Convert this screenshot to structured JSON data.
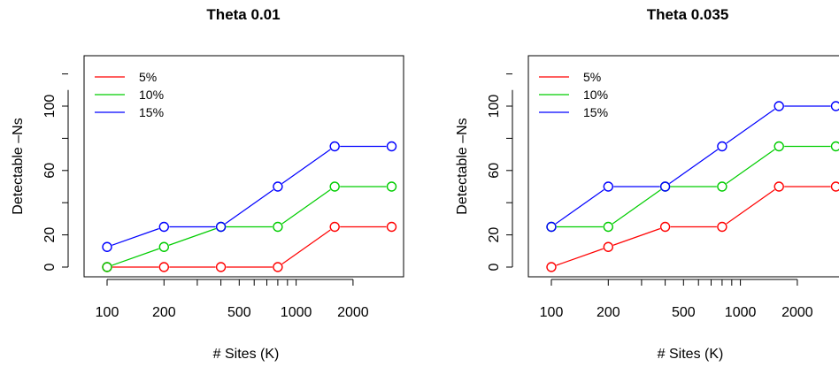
{
  "chart_data": [
    {
      "type": "line",
      "title": "Theta 0.01",
      "xlabel": "# Sites (K)",
      "ylabel": "Detectable –Ns",
      "x_scale": "log",
      "x": [
        100,
        200,
        400,
        800,
        1600,
        3200
      ],
      "xticks": [
        100,
        200,
        500,
        1000,
        2000
      ],
      "xtick_labels": [
        "100",
        "200",
        "500",
        "1000",
        "2000"
      ],
      "yticks": [
        0,
        20,
        60,
        100
      ],
      "ytick_labels": [
        "0",
        "20",
        "60",
        "100"
      ],
      "ylim": [
        -5,
        120
      ],
      "legend_position": "top-left",
      "series": [
        {
          "name": "5%",
          "color": "#ff0000",
          "values": [
            0,
            0,
            0,
            0,
            25,
            25
          ]
        },
        {
          "name": "10%",
          "color": "#00cd00",
          "values": [
            0,
            12.5,
            25,
            25,
            50,
            50
          ]
        },
        {
          "name": "15%",
          "color": "#0000ff",
          "values": [
            12.5,
            25,
            25,
            50,
            75,
            75
          ]
        }
      ]
    },
    {
      "type": "line",
      "title": "Theta 0.035",
      "xlabel": "# Sites (K)",
      "ylabel": "Detectable –Ns",
      "x_scale": "log",
      "x": [
        100,
        200,
        400,
        800,
        1600,
        3200
      ],
      "xticks": [
        100,
        200,
        500,
        1000,
        2000
      ],
      "xtick_labels": [
        "100",
        "200",
        "500",
        "1000",
        "2000"
      ],
      "yticks": [
        0,
        20,
        60,
        100
      ],
      "ytick_labels": [
        "0",
        "20",
        "60",
        "100"
      ],
      "ylim": [
        -5,
        120
      ],
      "legend_position": "top-left",
      "series": [
        {
          "name": "5%",
          "color": "#ff0000",
          "values": [
            0,
            12.5,
            25,
            25,
            50,
            50
          ]
        },
        {
          "name": "10%",
          "color": "#00cd00",
          "values": [
            25,
            25,
            50,
            50,
            75,
            75
          ]
        },
        {
          "name": "15%",
          "color": "#0000ff",
          "values": [
            25,
            50,
            50,
            75,
            100,
            100
          ]
        }
      ]
    }
  ]
}
